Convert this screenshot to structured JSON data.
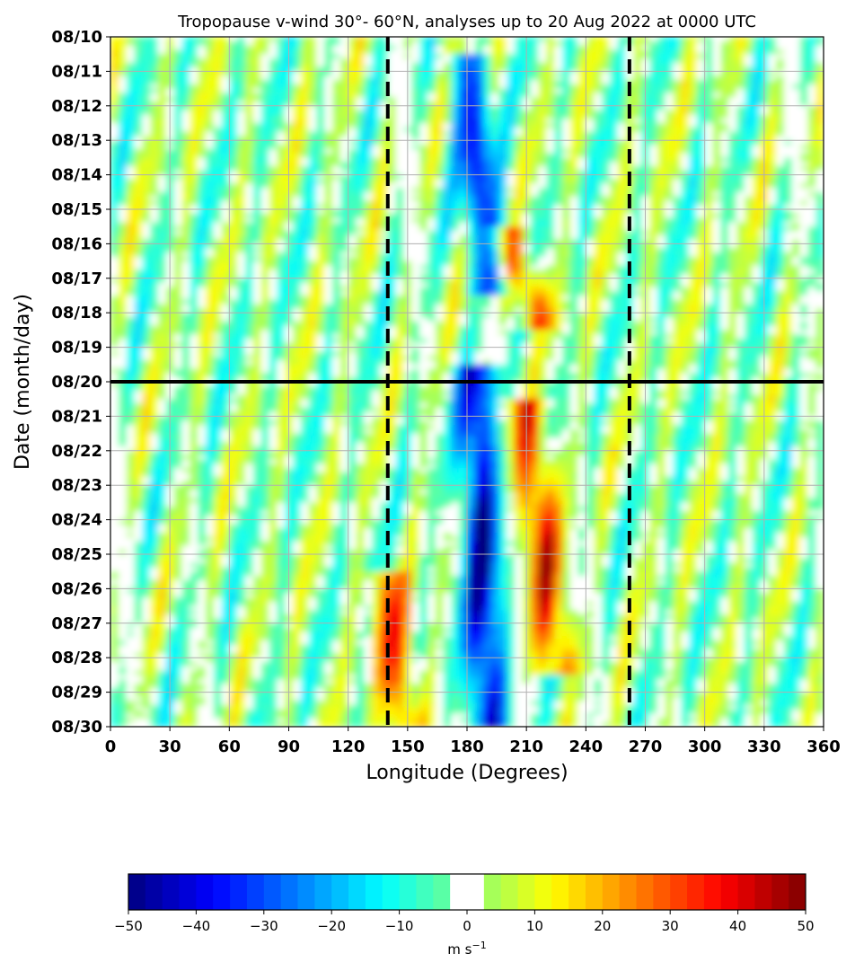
{
  "chart_data": {
    "type": "heatmap",
    "title": "Tropopause v-wind 30°- 60°N, analyses up to 20 Aug 2022 at 0000 UTC",
    "xlabel": "Longitude (Degrees)",
    "ylabel": "Date (month/day)",
    "xlim": [
      0,
      360
    ],
    "x_ticks": [
      "0",
      "30",
      "60",
      "90",
      "120",
      "150",
      "180",
      "210",
      "240",
      "270",
      "300",
      "330",
      "360"
    ],
    "y_ticks": [
      "08/10",
      "08/11",
      "08/12",
      "08/13",
      "08/14",
      "08/15",
      "08/16",
      "08/17",
      "08/18",
      "08/19",
      "08/20",
      "08/21",
      "08/22",
      "08/23",
      "08/24",
      "08/25",
      "08/26",
      "08/27",
      "08/28",
      "08/29",
      "08/30"
    ],
    "grid": true,
    "analysis_time_line": "08/20",
    "dashed_longitude_lines": [
      140,
      262
    ],
    "colorbar": {
      "range": [
        -50,
        50
      ],
      "step": 2.5,
      "white_band": [
        -2.5,
        2.5
      ],
      "ticks": [
        "−50",
        "−40",
        "−30",
        "−20",
        "−10",
        "0",
        "10",
        "20",
        "30",
        "40",
        "50"
      ],
      "label": "m s",
      "label_exponent": "−1"
    },
    "features": [
      {
        "sign": "negative",
        "lon_start": 180,
        "date_start": "08/11",
        "lon_end": 192,
        "date_end": "08/17",
        "peak": -35
      },
      {
        "sign": "negative",
        "lon_start": 185,
        "date_start": "08/20",
        "lon_end": 190,
        "date_end": "08/30",
        "peak": -45
      },
      {
        "sign": "positive",
        "lon_start": 200,
        "date_start": "08/16",
        "lon_end": 215,
        "date_end": "08/18",
        "peak": 30
      },
      {
        "sign": "positive",
        "lon_start": 210,
        "date_start": "08/21",
        "lon_end": 225,
        "date_end": "08/28",
        "peak": 35
      },
      {
        "sign": "positive",
        "lon_start": 140,
        "date_start": "08/26",
        "lon_end": 148,
        "date_end": "08/30",
        "peak": 30
      }
    ],
    "colors": {
      "dark_negative": "#000080",
      "neutral": "#ffffff",
      "dark_positive": "#800000",
      "gridline": "#b0b0b0"
    }
  }
}
